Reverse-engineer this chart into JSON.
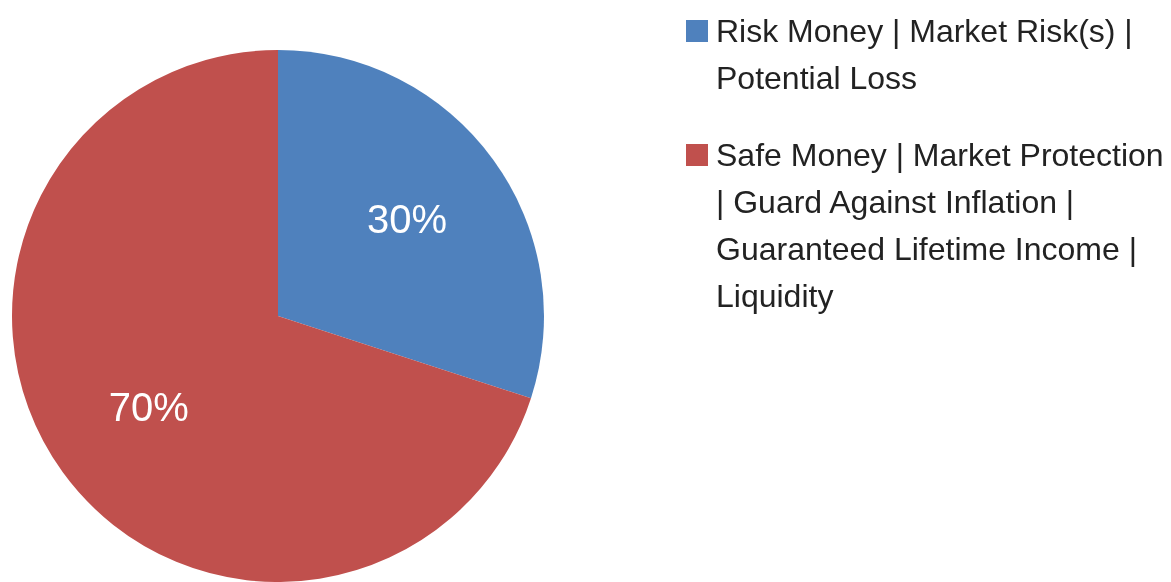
{
  "chart_data": {
    "type": "pie",
    "categories": [
      "Risk Money | Market Risk(s) | Potential Loss",
      "Safe Money | Market Protection | Guard Against Inflation | Guaranteed Lifetime Income | Liquidity"
    ],
    "values": [
      30,
      70
    ],
    "colors": [
      "#4f81bd",
      "#c0504d"
    ],
    "value_labels": [
      "30%",
      "70%"
    ],
    "legend": "top right"
  }
}
